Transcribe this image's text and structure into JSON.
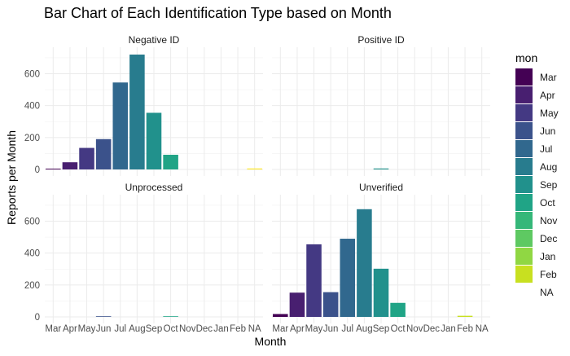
{
  "chart_data": {
    "type": "bar",
    "title": "Bar Chart of Each Identification Type based on Month",
    "xlabel": "Month",
    "ylabel": "Reports per Month",
    "categories": [
      "Mar",
      "Apr",
      "May",
      "Jun",
      "Jul",
      "Aug",
      "Sep",
      "Oct",
      "Nov",
      "Dec",
      "Jan",
      "Feb",
      "NA"
    ],
    "ylim": [
      0,
      725
    ],
    "yticks": [
      0,
      200,
      400,
      600
    ],
    "grid": true,
    "legend": {
      "title": "mon",
      "position": "right",
      "entries": [
        "Mar",
        "Apr",
        "May",
        "Jun",
        "Jul",
        "Aug",
        "Sep",
        "Oct",
        "Nov",
        "Dec",
        "Jan",
        "Feb",
        "NA"
      ],
      "colors": [
        "#440154",
        "#481f70",
        "#443983",
        "#3b528b",
        "#31688e",
        "#287c8e",
        "#21918c",
        "#20a486",
        "#35b779",
        "#5ec962",
        "#90d743",
        "#c8e020",
        "#fde725"
      ]
    },
    "panels": [
      {
        "name": "Negative ID",
        "values": [
          5,
          45,
          135,
          190,
          545,
          720,
          355,
          92,
          0,
          0,
          0,
          0,
          6
        ]
      },
      {
        "name": "Positive ID",
        "values": [
          0,
          0,
          0,
          0,
          0,
          0,
          6,
          0,
          0,
          0,
          0,
          0,
          0
        ]
      },
      {
        "name": "Unprocessed",
        "values": [
          0,
          0,
          0,
          4,
          0,
          0,
          0,
          4,
          0,
          0,
          0,
          0,
          0
        ]
      },
      {
        "name": "Unverified",
        "values": [
          18,
          152,
          455,
          155,
          490,
          675,
          302,
          88,
          0,
          0,
          0,
          7,
          0
        ]
      }
    ]
  }
}
